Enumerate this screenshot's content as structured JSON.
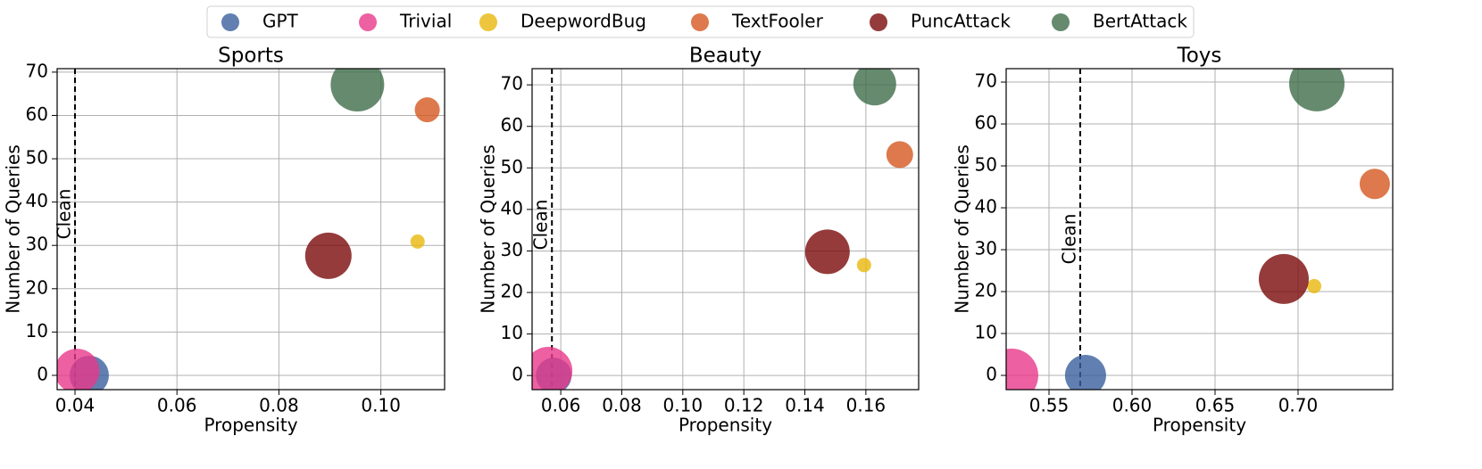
{
  "legend_loc": "upper center",
  "chart_data": [
    {
      "type": "scatter",
      "title": "Sports",
      "x_label": "Propensity",
      "y_label": "Number of Queries",
      "xlim": [
        0.0365,
        0.1125
      ],
      "ylim": [
        -3.3,
        70.8
      ],
      "xticks": [
        {
          "value": 0.04,
          "label": "0.04"
        },
        {
          "value": 0.06,
          "label": "0.06"
        },
        {
          "value": 0.08,
          "label": "0.08"
        },
        {
          "value": 0.1,
          "label": "0.10"
        }
      ],
      "yticks": [
        0,
        10,
        20,
        30,
        40,
        50,
        60,
        70
      ],
      "grid": true,
      "clean_x": 0.04,
      "clean_label": "Clean",
      "series": [
        {
          "name": "GPT",
          "color": "#3a5f9c",
          "x": [
            0.0428
          ],
          "values": [
            0
          ],
          "sizes": [
            484
          ]
        },
        {
          "name": "Trivial",
          "color": "#e8388a",
          "x": [
            0.0404
          ],
          "values": [
            1
          ],
          "sizes": [
            625
          ]
        },
        {
          "name": "DeepwordBug",
          "color": "#e9b80c",
          "x": [
            0.1072
          ],
          "values": [
            30.9
          ],
          "sizes": [
            64
          ]
        },
        {
          "name": "TextFooler",
          "color": "#d4581f",
          "x": [
            0.1091
          ],
          "values": [
            61.3
          ],
          "sizes": [
            196
          ]
        },
        {
          "name": "PuncAttack",
          "color": "#7b0a0a",
          "x": [
            0.0897
          ],
          "values": [
            27.6
          ],
          "sizes": [
            676
          ]
        },
        {
          "name": "BertAttack",
          "color": "#3f6d4a",
          "x": [
            0.0954
          ],
          "values": [
            67.1
          ],
          "sizes": [
            900
          ]
        }
      ]
    },
    {
      "type": "scatter",
      "title": "Beauty",
      "x_label": "Propensity",
      "y_label": "Number of Queries",
      "xlim": [
        0.0506,
        0.1773
      ],
      "ylim": [
        -3.4,
        73.9
      ],
      "xticks": [
        {
          "value": 0.06,
          "label": "0.06"
        },
        {
          "value": 0.08,
          "label": "0.08"
        },
        {
          "value": 0.1,
          "label": "0.10"
        },
        {
          "value": 0.12,
          "label": "0.12"
        },
        {
          "value": 0.14,
          "label": "0.14"
        },
        {
          "value": 0.16,
          "label": "0.16"
        }
      ],
      "yticks": [
        0,
        10,
        20,
        30,
        40,
        50,
        60,
        70
      ],
      "grid": true,
      "clean_x": 0.0571,
      "clean_label": "Clean",
      "series": [
        {
          "name": "GPT",
          "color": "#3a5f9c",
          "x": [
            0.0577
          ],
          "values": [
            0
          ],
          "sizes": [
            400
          ]
        },
        {
          "name": "Trivial",
          "color": "#e8388a",
          "x": [
            0.0559
          ],
          "values": [
            1.1
          ],
          "sizes": [
            729
          ]
        },
        {
          "name": "DeepwordBug",
          "color": "#e9b80c",
          "x": [
            0.1594
          ],
          "values": [
            26.6
          ],
          "sizes": [
            64
          ]
        },
        {
          "name": "TextFooler",
          "color": "#d4581f",
          "x": [
            0.1711
          ],
          "values": [
            53.2
          ],
          "sizes": [
            225
          ]
        },
        {
          "name": "PuncAttack",
          "color": "#7b0a0a",
          "x": [
            0.1474
          ],
          "values": [
            29.8
          ],
          "sizes": [
            625
          ]
        },
        {
          "name": "BertAttack",
          "color": "#3f6d4a",
          "x": [
            0.1629
          ],
          "values": [
            70.2
          ],
          "sizes": [
            576
          ]
        }
      ]
    },
    {
      "type": "scatter",
      "title": "Toys",
      "x_label": "Propensity",
      "y_label": "Number of Queries",
      "xlim": [
        0.5242,
        0.757
      ],
      "ylim": [
        -3.4,
        73.2
      ],
      "xticks": [
        {
          "value": 0.55,
          "label": "0.55"
        },
        {
          "value": 0.6,
          "label": "0.60"
        },
        {
          "value": 0.65,
          "label": "0.65"
        },
        {
          "value": 0.7,
          "label": "0.70"
        }
      ],
      "yticks": [
        0,
        10,
        20,
        30,
        40,
        50,
        60,
        70
      ],
      "grid": true,
      "clean_x": 0.5688,
      "clean_label": "Clean",
      "series": [
        {
          "name": "GPT",
          "color": "#3a5f9c",
          "x": [
            0.572
          ],
          "values": [
            0
          ],
          "sizes": [
            529
          ]
        },
        {
          "name": "Trivial",
          "color": "#e8388a",
          "x": [
            0.5274
          ],
          "values": [
            0
          ],
          "sizes": [
            900
          ]
        },
        {
          "name": "DeepwordBug",
          "color": "#e9b80c",
          "x": [
            0.7097
          ],
          "values": [
            21.3
          ],
          "sizes": [
            64
          ]
        },
        {
          "name": "TextFooler",
          "color": "#d4581f",
          "x": [
            0.7462
          ],
          "values": [
            45.7
          ],
          "sizes": [
            289
          ]
        },
        {
          "name": "PuncAttack",
          "color": "#7b0a0a",
          "x": [
            0.6914
          ],
          "values": [
            23
          ],
          "sizes": [
            784
          ]
        },
        {
          "name": "BertAttack",
          "color": "#3f6d4a",
          "x": [
            0.7113
          ],
          "values": [
            69.6
          ],
          "sizes": [
            961
          ]
        }
      ]
    }
  ]
}
